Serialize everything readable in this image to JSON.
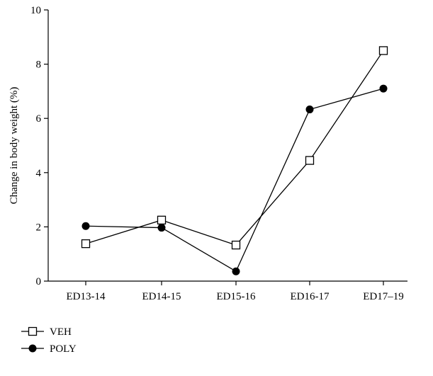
{
  "chart_data": {
    "type": "line",
    "title": "",
    "xlabel": "",
    "ylabel": "Change in body weight (%)",
    "categories": [
      "ED13-14",
      "ED14-15",
      "ED15-16",
      "ED16-17",
      "ED17–19"
    ],
    "ylim": [
      0,
      10
    ],
    "yticks": [
      0,
      2,
      4,
      6,
      8,
      10
    ],
    "grid": false,
    "legend_position": "bottom-left",
    "series": [
      {
        "name": "VEH",
        "marker": "open-square",
        "color": "#000000",
        "values": [
          1.38,
          2.25,
          1.33,
          4.45,
          8.5
        ]
      },
      {
        "name": "POLY",
        "marker": "filled-circle",
        "color": "#000000",
        "values": [
          2.03,
          1.97,
          0.36,
          6.33,
          7.1
        ]
      }
    ]
  }
}
